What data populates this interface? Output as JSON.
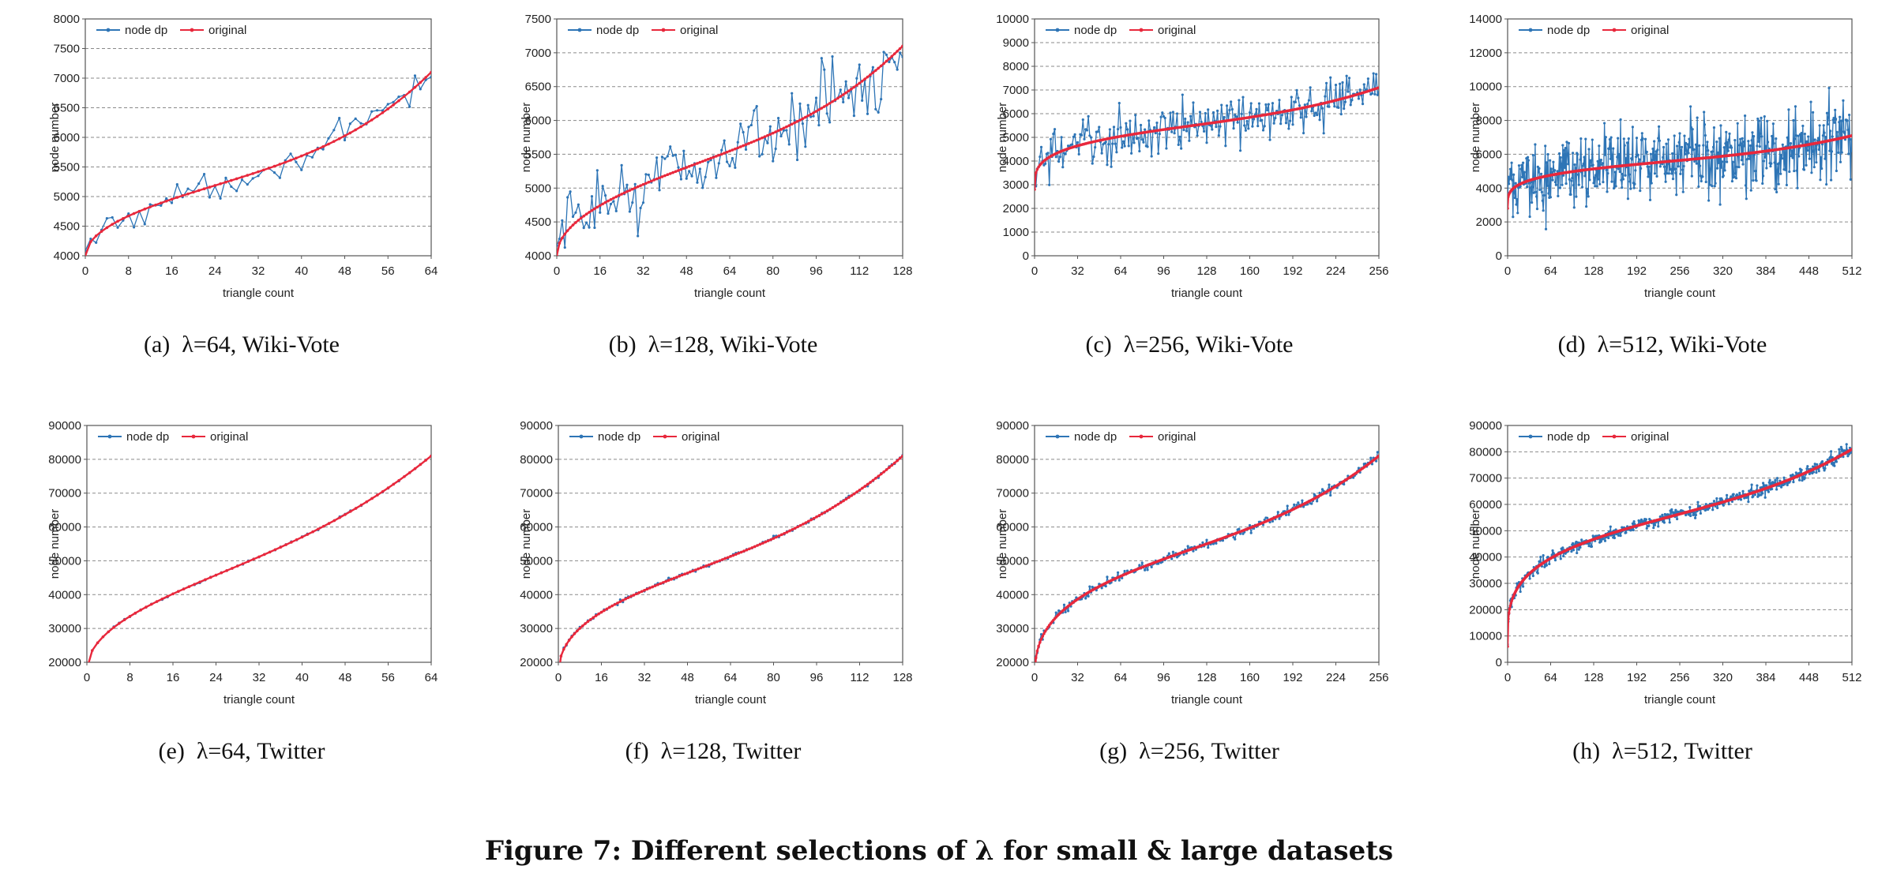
{
  "figure_caption": "Figure 7: Different selections of λ for small & large datasets",
  "chart_data": [
    {
      "type": "line",
      "panel": "(a)",
      "caption": "λ=64, Wiki-Vote",
      "xlabel": "triangle count",
      "ylabel": "node number",
      "xlim": [
        0,
        64
      ],
      "ylim": [
        4000,
        8000
      ],
      "xticks": [
        0,
        8,
        16,
        24,
        32,
        40,
        48,
        56,
        64
      ],
      "yticks": [
        4000,
        4500,
        5000,
        5500,
        6000,
        6500,
        7000,
        7500,
        8000
      ],
      "legend": "top-left",
      "grid": "horizontal-dashed",
      "series": [
        {
          "name": "node dp",
          "color": "#2e75b6",
          "curve": {
            "a": 4000,
            "b": 1900,
            "c": 1200,
            "p": 0.5,
            "k": 4.0,
            "x0": 64
          },
          "noise": 170,
          "points": 64
        },
        {
          "name": "original",
          "color": "#e8283c",
          "curve": {
            "a": 4000,
            "b": 1900,
            "c": 1200,
            "p": 0.5,
            "k": 4.0,
            "x0": 64
          },
          "noise": 0,
          "points": 64
        }
      ]
    },
    {
      "type": "line",
      "panel": "(b)",
      "caption": "λ=128, Wiki-Vote",
      "xlabel": "triangle count",
      "ylabel": "node number",
      "xlim": [
        0,
        128
      ],
      "ylim": [
        4000,
        7500
      ],
      "xticks": [
        0,
        16,
        32,
        48,
        64,
        80,
        96,
        112,
        128
      ],
      "yticks": [
        4000,
        4500,
        5000,
        5500,
        6000,
        6500,
        7000,
        7500
      ],
      "legend": "top-left",
      "grid": "horizontal-dashed",
      "series": [
        {
          "name": "node dp",
          "color": "#2e75b6",
          "curve": {
            "a": 4000,
            "b": 2100,
            "c": 1000,
            "p": 0.5,
            "k": 4.0,
            "x0": 128
          },
          "noise": 380,
          "points": 128
        },
        {
          "name": "original",
          "color": "#e8283c",
          "curve": {
            "a": 4000,
            "b": 2100,
            "c": 1000,
            "p": 0.5,
            "k": 4.0,
            "x0": 128
          },
          "noise": 0,
          "points": 128
        }
      ]
    },
    {
      "type": "line",
      "panel": "(c)",
      "caption": "λ=256, Wiki-Vote",
      "xlabel": "triangle count",
      "ylabel": "node number",
      "xlim": [
        0,
        256
      ],
      "ylim": [
        0,
        10000
      ],
      "xticks": [
        0,
        32,
        64,
        96,
        128,
        160,
        192,
        224,
        256
      ],
      "yticks": [
        0,
        1000,
        2000,
        3000,
        4000,
        5000,
        6000,
        7000,
        8000,
        9000,
        10000
      ],
      "legend": "top-left",
      "grid": "horizontal-dashed",
      "series": [
        {
          "name": "node dp",
          "color": "#2e75b6",
          "curve": {
            "a": 2800,
            "b": 3300,
            "c": 1000,
            "p": 0.28,
            "k": 4.0,
            "x0": 256
          },
          "noise": 750,
          "points": 256
        },
        {
          "name": "original",
          "color": "#e8283c",
          "curve": {
            "a": 2800,
            "b": 3300,
            "c": 1000,
            "p": 0.28,
            "k": 4.0,
            "x0": 256
          },
          "noise": 0,
          "points": 256
        }
      ]
    },
    {
      "type": "line",
      "panel": "(d)",
      "caption": "λ=512, Wiki-Vote",
      "xlabel": "triangle count",
      "ylabel": "node number",
      "xlim": [
        0,
        512
      ],
      "ylim": [
        0,
        14000
      ],
      "xticks": [
        0,
        64,
        128,
        192,
        256,
        320,
        384,
        448,
        512
      ],
      "yticks": [
        0,
        2000,
        4000,
        6000,
        8000,
        10000,
        12000,
        14000
      ],
      "legend": "top-left",
      "grid": "horizontal-dashed",
      "series": [
        {
          "name": "node dp",
          "color": "#2e75b6",
          "curve": {
            "a": 2800,
            "b": 3300,
            "c": 1000,
            "p": 0.25,
            "k": 4.0,
            "x0": 512
          },
          "noise": 1600,
          "points": 512
        },
        {
          "name": "original",
          "color": "#e8283c",
          "curve": {
            "a": 2800,
            "b": 3300,
            "c": 1000,
            "p": 0.25,
            "k": 4.0,
            "x0": 512
          },
          "noise": 0,
          "points": 512
        }
      ]
    },
    {
      "type": "line",
      "panel": "(e)",
      "caption": "λ=64, Twitter",
      "xlabel": "triangle count",
      "ylabel": "node number",
      "xlim": [
        0,
        64
      ],
      "ylim": [
        20000,
        90000
      ],
      "xticks": [
        0,
        8,
        16,
        24,
        32,
        40,
        48,
        56,
        64
      ],
      "yticks": [
        20000,
        30000,
        40000,
        50000,
        60000,
        70000,
        80000,
        90000
      ],
      "legend": "top-left",
      "grid": "horizontal-dashed",
      "series": [
        {
          "name": "node dp",
          "color": "#2e75b6",
          "curve": {
            "a": 18000,
            "b": 44000,
            "c": 19000,
            "p": 0.5,
            "k": 3.2,
            "x0": 64
          },
          "noise": 200,
          "points": 64
        },
        {
          "name": "original",
          "color": "#e8283c",
          "curve": {
            "a": 18000,
            "b": 44000,
            "c": 19000,
            "p": 0.5,
            "k": 3.2,
            "x0": 64
          },
          "noise": 0,
          "points": 64
        }
      ]
    },
    {
      "type": "line",
      "panel": "(f)",
      "caption": "λ=128, Twitter",
      "xlabel": "triangle count",
      "ylabel": "node number",
      "xlim": [
        0,
        128
      ],
      "ylim": [
        20000,
        90000
      ],
      "xticks": [
        0,
        16,
        32,
        48,
        64,
        80,
        96,
        112,
        128
      ],
      "yticks": [
        20000,
        30000,
        40000,
        50000,
        60000,
        70000,
        80000,
        90000
      ],
      "legend": "top-left",
      "grid": "horizontal-dashed",
      "series": [
        {
          "name": "node dp",
          "color": "#2e75b6",
          "curve": {
            "a": 16000,
            "b": 45000,
            "c": 20000,
            "p": 0.42,
            "k": 3.6,
            "x0": 128
          },
          "noise": 400,
          "points": 128
        },
        {
          "name": "original",
          "color": "#e8283c",
          "curve": {
            "a": 16000,
            "b": 45000,
            "c": 20000,
            "p": 0.42,
            "k": 3.6,
            "x0": 128
          },
          "noise": 0,
          "points": 128
        }
      ]
    },
    {
      "type": "line",
      "panel": "(g)",
      "caption": "λ=256, Twitter",
      "xlabel": "triangle count",
      "ylabel": "node number",
      "xlim": [
        0,
        256
      ],
      "ylim": [
        20000,
        90000
      ],
      "xticks": [
        0,
        32,
        64,
        96,
        128,
        160,
        192,
        224,
        256
      ],
      "yticks": [
        20000,
        30000,
        40000,
        50000,
        60000,
        70000,
        80000,
        90000
      ],
      "legend": "top-left",
      "grid": "horizontal-dashed",
      "series": [
        {
          "name": "node dp",
          "color": "#2e75b6",
          "curve": {
            "a": 14000,
            "b": 51000,
            "c": 16000,
            "p": 0.35,
            "k": 4.0,
            "x0": 256
          },
          "noise": 1000,
          "points": 256
        },
        {
          "name": "original",
          "color": "#e8283c",
          "curve": {
            "a": 14000,
            "b": 51000,
            "c": 16000,
            "p": 0.35,
            "k": 4.0,
            "x0": 256
          },
          "noise": 0,
          "points": 256
        }
      ]
    },
    {
      "type": "line",
      "panel": "(h)",
      "caption": "λ=512, Twitter",
      "xlabel": "triangle count",
      "ylabel": "node number",
      "xlim": [
        0,
        512
      ],
      "ylim": [
        0,
        90000
      ],
      "xticks": [
        0,
        64,
        128,
        192,
        256,
        320,
        384,
        448,
        512
      ],
      "yticks": [
        0,
        10000,
        20000,
        30000,
        40000,
        50000,
        60000,
        70000,
        80000,
        90000
      ],
      "legend": "top-left",
      "grid": "horizontal-dashed",
      "series": [
        {
          "name": "node dp",
          "color": "#2e75b6",
          "curve": {
            "a": 6000,
            "b": 60000,
            "c": 15000,
            "p": 0.28,
            "k": 4.0,
            "x0": 512
          },
          "noise": 1800,
          "points": 512
        },
        {
          "name": "original",
          "color": "#e8283c",
          "curve": {
            "a": 6000,
            "b": 60000,
            "c": 15000,
            "p": 0.28,
            "k": 4.0,
            "x0": 512
          },
          "noise": 0,
          "points": 512
        }
      ]
    }
  ]
}
